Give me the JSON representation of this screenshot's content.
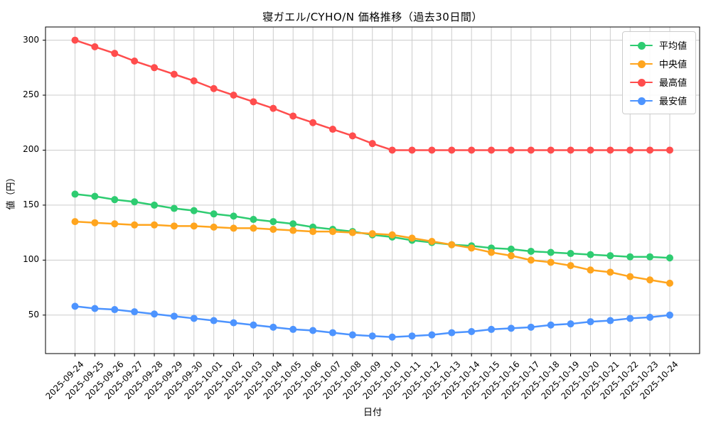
{
  "title": "寝ガエル/CYHO/N 価格推移（過去30日間）",
  "chart_data": {
    "type": "line",
    "title": "寝ガエル/CYHO/N 価格推移（過去30日間）",
    "xlabel": "日付",
    "ylabel": "値（円）",
    "grid": true,
    "legend_position": "upper right",
    "ylim": [
      15,
      312
    ],
    "yticks": [
      50,
      100,
      150,
      200,
      250,
      300
    ],
    "categories": [
      "2025-09-24",
      "2025-09-25",
      "2025-09-26",
      "2025-09-27",
      "2025-09-28",
      "2025-09-29",
      "2025-09-30",
      "2025-10-01",
      "2025-10-02",
      "2025-10-03",
      "2025-10-04",
      "2025-10-05",
      "2025-10-06",
      "2025-10-07",
      "2025-10-08",
      "2025-10-09",
      "2025-10-10",
      "2025-10-11",
      "2025-10-12",
      "2025-10-13",
      "2025-10-14",
      "2025-10-15",
      "2025-10-16",
      "2025-10-17",
      "2025-10-18",
      "2025-10-19",
      "2025-10-20",
      "2025-10-21",
      "2025-10-22",
      "2025-10-23",
      "2025-10-24"
    ],
    "series": [
      {
        "name": "平均値",
        "color": "#2ecc71",
        "values": [
          160,
          158,
          155,
          153,
          150,
          147,
          145,
          142,
          140,
          137,
          135,
          133,
          130,
          128,
          126,
          123,
          121,
          118,
          116,
          114,
          113,
          111,
          110,
          108,
          107,
          106,
          105,
          104,
          103,
          103,
          102
        ]
      },
      {
        "name": "中央値",
        "color": "#ffa51e",
        "values": [
          135,
          134,
          133,
          132,
          132,
          131,
          131,
          130,
          129,
          129,
          128,
          127,
          126,
          126,
          125,
          124,
          123,
          120,
          117,
          114,
          111,
          107,
          104,
          100,
          98,
          95,
          91,
          89,
          85,
          82,
          79
        ]
      },
      {
        "name": "最高値",
        "color": "#ff4d4d",
        "values": [
          300,
          294,
          288,
          281,
          275,
          269,
          263,
          256,
          250,
          244,
          238,
          231,
          225,
          219,
          213,
          206,
          200,
          200,
          200,
          200,
          200,
          200,
          200,
          200,
          200,
          200,
          200,
          200,
          200,
          200,
          200
        ]
      },
      {
        "name": "最安値",
        "color": "#4d94ff",
        "values": [
          58,
          56,
          55,
          53,
          51,
          49,
          47,
          45,
          43,
          41,
          39,
          37,
          36,
          34,
          32,
          31,
          30,
          31,
          32,
          34,
          35,
          37,
          38,
          39,
          41,
          42,
          44,
          45,
          47,
          48,
          50
        ]
      }
    ]
  }
}
